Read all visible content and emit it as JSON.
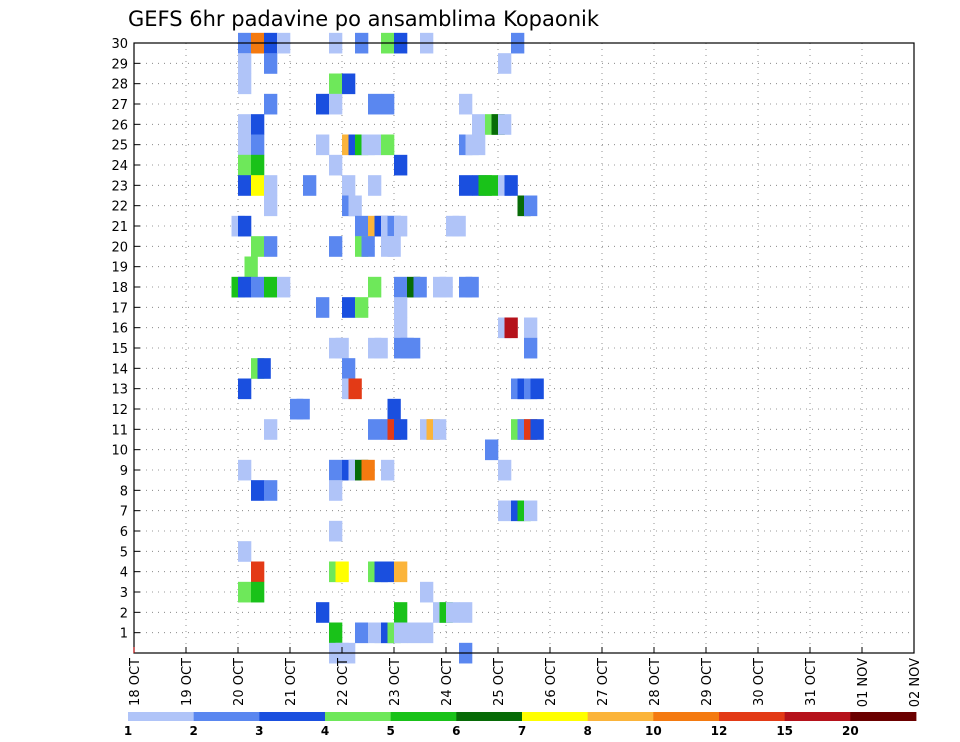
{
  "chart_data": {
    "type": "heatmap",
    "title": "GEFS 6hr padavine po ansamblima Kopaonik",
    "xlabel": "",
    "ylabel": "",
    "x_tick_labels": [
      "18 OCT",
      "19 OCT",
      "20 OCT",
      "21 OCT",
      "22 OCT",
      "23 OCT",
      "24 OCT",
      "25 OCT",
      "26 OCT",
      "27 OCT",
      "28 OCT",
      "29 OCT",
      "30 OCT",
      "31 OCT",
      "01 NOV",
      "02 NOV"
    ],
    "y_tick_labels": [
      "1",
      "2",
      "3",
      "4",
      "5",
      "6",
      "7",
      "8",
      "9",
      "10",
      "11",
      "12",
      "13",
      "14",
      "15",
      "16",
      "17",
      "18",
      "19",
      "20",
      "21",
      "22",
      "23",
      "24",
      "25",
      "26",
      "27",
      "28",
      "29",
      "30"
    ],
    "ylim": [
      0,
      30
    ],
    "time_step_hours": 6,
    "time_steps": 61,
    "grid": true,
    "legend_placement": "bottom",
    "legend_labels": [
      "1",
      "2",
      "3",
      "4",
      "5",
      "6",
      "7",
      "8",
      "10",
      "12",
      "15",
      "20"
    ],
    "colors": [
      "#b0c4f8",
      "#5a87f0",
      "#1a4fdf",
      "#6ee85a",
      "#19c219",
      "#076b07",
      "#ffff00",
      "#fbb43a",
      "#f47a10",
      "#e33a16",
      "#b5121b",
      "#6b0000"
    ],
    "cells": [
      {
        "t": 8,
        "m": 30,
        "c": 1
      },
      {
        "t": 9,
        "m": 30,
        "c": 8
      },
      {
        "t": 10,
        "m": 30,
        "c": 2
      },
      {
        "t": 11,
        "m": 30,
        "c": 0
      },
      {
        "t": 15,
        "m": 30,
        "c": 0
      },
      {
        "t": 17,
        "m": 30,
        "c": 1
      },
      {
        "t": 19,
        "m": 30,
        "c": 3
      },
      {
        "t": 20,
        "m": 30,
        "c": 2
      },
      {
        "t": 22,
        "m": 30,
        "c": 0
      },
      {
        "t": 29,
        "m": 30,
        "c": 1
      },
      {
        "t": 8,
        "m": 29,
        "c": 0
      },
      {
        "t": 10,
        "m": 29,
        "c": 1
      },
      {
        "t": 28,
        "m": 29,
        "c": 0
      },
      {
        "t": 8,
        "m": 28,
        "c": 0
      },
      {
        "t": 15,
        "m": 28,
        "c": 3
      },
      {
        "t": 16,
        "m": 28,
        "c": 2
      },
      {
        "t": 10,
        "m": 27,
        "c": 1
      },
      {
        "t": 14,
        "m": 27,
        "c": 2
      },
      {
        "t": 15,
        "m": 27,
        "c": 0
      },
      {
        "t": 18,
        "m": 27,
        "c": 1
      },
      {
        "t": 19,
        "m": 27,
        "c": 1
      },
      {
        "t": 25,
        "m": 27,
        "c": 0
      },
      {
        "t": 8,
        "m": 26,
        "c": 0
      },
      {
        "t": 9,
        "m": 26,
        "c": 2
      },
      {
        "t": 26,
        "m": 26,
        "c": 0
      },
      {
        "t": 27,
        "m": 26,
        "c": 3
      },
      {
        "t": 27.5,
        "m": 26,
        "c": 5
      },
      {
        "t": 28,
        "m": 26,
        "c": 0
      },
      {
        "t": 8,
        "m": 25,
        "c": 0
      },
      {
        "t": 9,
        "m": 25,
        "c": 1
      },
      {
        "t": 14,
        "m": 25,
        "c": 0
      },
      {
        "t": 16,
        "m": 25,
        "c": 7
      },
      {
        "t": 16.5,
        "m": 25,
        "c": 2
      },
      {
        "t": 17,
        "m": 25,
        "c": 4
      },
      {
        "t": 17.5,
        "m": 25,
        "c": 0
      },
      {
        "t": 18,
        "m": 25,
        "c": 0
      },
      {
        "t": 19,
        "m": 25,
        "c": 3
      },
      {
        "t": 25,
        "m": 25,
        "c": 1
      },
      {
        "t": 25.5,
        "m": 25,
        "c": 0
      },
      {
        "t": 26,
        "m": 25,
        "c": 0
      },
      {
        "t": 8,
        "m": 24,
        "c": 3
      },
      {
        "t": 9,
        "m": 24,
        "c": 4
      },
      {
        "t": 15,
        "m": 24,
        "c": 0
      },
      {
        "t": 20,
        "m": 24,
        "c": 2
      },
      {
        "t": 8,
        "m": 23,
        "c": 2
      },
      {
        "t": 9,
        "m": 23,
        "c": 6
      },
      {
        "t": 10,
        "m": 23,
        "c": 0
      },
      {
        "t": 13,
        "m": 23,
        "c": 1
      },
      {
        "t": 16,
        "m": 23,
        "c": 0
      },
      {
        "t": 18,
        "m": 23,
        "c": 0
      },
      {
        "t": 25,
        "m": 23,
        "c": 2
      },
      {
        "t": 26,
        "m": 23,
        "c": 2
      },
      {
        "t": 26.5,
        "m": 23,
        "c": 4
      },
      {
        "t": 27,
        "m": 23,
        "c": 4
      },
      {
        "t": 28,
        "m": 23,
        "c": 0
      },
      {
        "t": 28.5,
        "m": 23,
        "c": 2
      },
      {
        "t": 10,
        "m": 22,
        "c": 0
      },
      {
        "t": 16,
        "m": 22,
        "c": 1
      },
      {
        "t": 16.5,
        "m": 22,
        "c": 0
      },
      {
        "t": 29.5,
        "m": 22,
        "c": 5
      },
      {
        "t": 30,
        "m": 22,
        "c": 1
      },
      {
        "t": 7.5,
        "m": 21,
        "c": 0
      },
      {
        "t": 8,
        "m": 21,
        "c": 2
      },
      {
        "t": 17,
        "m": 21,
        "c": 1
      },
      {
        "t": 18,
        "m": 21,
        "c": 7
      },
      {
        "t": 18.5,
        "m": 21,
        "c": 2
      },
      {
        "t": 19,
        "m": 21,
        "c": 0
      },
      {
        "t": 19.5,
        "m": 21,
        "c": 1
      },
      {
        "t": 20,
        "m": 21,
        "c": 0
      },
      {
        "t": 24,
        "m": 21,
        "c": 0
      },
      {
        "t": 24.5,
        "m": 21,
        "c": 0
      },
      {
        "t": 9,
        "m": 20,
        "c": 3
      },
      {
        "t": 10,
        "m": 20,
        "c": 1
      },
      {
        "t": 15,
        "m": 20,
        "c": 1
      },
      {
        "t": 17,
        "m": 20,
        "c": 3
      },
      {
        "t": 17.5,
        "m": 20,
        "c": 1
      },
      {
        "t": 19,
        "m": 20,
        "c": 0
      },
      {
        "t": 19.5,
        "m": 20,
        "c": 0
      },
      {
        "t": 8.5,
        "m": 19,
        "c": 3
      },
      {
        "t": 7.5,
        "m": 18,
        "c": 4
      },
      {
        "t": 8,
        "m": 18,
        "c": 2
      },
      {
        "t": 9,
        "m": 18,
        "c": 1
      },
      {
        "t": 10,
        "m": 18,
        "c": 4
      },
      {
        "t": 11,
        "m": 18,
        "c": 0
      },
      {
        "t": 18,
        "m": 18,
        "c": 3
      },
      {
        "t": 20,
        "m": 18,
        "c": 1
      },
      {
        "t": 21,
        "m": 18,
        "c": 5
      },
      {
        "t": 21.5,
        "m": 18,
        "c": 1
      },
      {
        "t": 23,
        "m": 18,
        "c": 0
      },
      {
        "t": 23.5,
        "m": 18,
        "c": 0
      },
      {
        "t": 25,
        "m": 18,
        "c": 1
      },
      {
        "t": 25.5,
        "m": 18,
        "c": 1
      },
      {
        "t": 14,
        "m": 17,
        "c": 1
      },
      {
        "t": 16,
        "m": 17,
        "c": 2
      },
      {
        "t": 17,
        "m": 17,
        "c": 3
      },
      {
        "t": 20,
        "m": 17,
        "c": 0
      },
      {
        "t": 20,
        "m": 16,
        "c": 0
      },
      {
        "t": 28,
        "m": 16,
        "c": 0
      },
      {
        "t": 28.5,
        "m": 16,
        "c": 10
      },
      {
        "t": 30,
        "m": 16,
        "c": 0
      },
      {
        "t": 15,
        "m": 15,
        "c": 0
      },
      {
        "t": 15.5,
        "m": 15,
        "c": 0
      },
      {
        "t": 18,
        "m": 15,
        "c": 0
      },
      {
        "t": 18.5,
        "m": 15,
        "c": 0
      },
      {
        "t": 20,
        "m": 15,
        "c": 1
      },
      {
        "t": 20.5,
        "m": 15,
        "c": 1
      },
      {
        "t": 21,
        "m": 15,
        "c": 1
      },
      {
        "t": 30,
        "m": 15,
        "c": 1
      },
      {
        "t": 9,
        "m": 14,
        "c": 3
      },
      {
        "t": 9.5,
        "m": 14,
        "c": 2
      },
      {
        "t": 16,
        "m": 14,
        "c": 1
      },
      {
        "t": 8,
        "m": 13,
        "c": 2
      },
      {
        "t": 16,
        "m": 13,
        "c": 0
      },
      {
        "t": 16.5,
        "m": 13,
        "c": 9
      },
      {
        "t": 29,
        "m": 13,
        "c": 1
      },
      {
        "t": 29.5,
        "m": 13,
        "c": 2
      },
      {
        "t": 30,
        "m": 13,
        "c": 1
      },
      {
        "t": 30.5,
        "m": 13,
        "c": 2
      },
      {
        "t": 12,
        "m": 12,
        "c": 1
      },
      {
        "t": 12.5,
        "m": 12,
        "c": 1
      },
      {
        "t": 19.5,
        "m": 12,
        "c": 2
      },
      {
        "t": 10,
        "m": 11,
        "c": 0
      },
      {
        "t": 18,
        "m": 11,
        "c": 1
      },
      {
        "t": 19,
        "m": 11,
        "c": 1
      },
      {
        "t": 19.5,
        "m": 11,
        "c": 9
      },
      {
        "t": 20,
        "m": 11,
        "c": 2
      },
      {
        "t": 22,
        "m": 11,
        "c": 0
      },
      {
        "t": 22.5,
        "m": 11,
        "c": 7
      },
      {
        "t": 23,
        "m": 11,
        "c": 0
      },
      {
        "t": 29,
        "m": 11,
        "c": 3
      },
      {
        "t": 29.5,
        "m": 11,
        "c": 1
      },
      {
        "t": 30,
        "m": 11,
        "c": 9
      },
      {
        "t": 30.5,
        "m": 11,
        "c": 2
      },
      {
        "t": 27,
        "m": 10,
        "c": 1
      },
      {
        "t": 8,
        "m": 9,
        "c": 0
      },
      {
        "t": 15,
        "m": 9,
        "c": 1
      },
      {
        "t": 16,
        "m": 9,
        "c": 2
      },
      {
        "t": 16.5,
        "m": 9,
        "c": 0
      },
      {
        "t": 17,
        "m": 9,
        "c": 5
      },
      {
        "t": 17.5,
        "m": 9,
        "c": 8
      },
      {
        "t": 19,
        "m": 9,
        "c": 0
      },
      {
        "t": 28,
        "m": 9,
        "c": 0
      },
      {
        "t": 9,
        "m": 8,
        "c": 2
      },
      {
        "t": 10,
        "m": 8,
        "c": 1
      },
      {
        "t": 15,
        "m": 8,
        "c": 0
      },
      {
        "t": 28,
        "m": 7,
        "c": 0
      },
      {
        "t": 29,
        "m": 7,
        "c": 2
      },
      {
        "t": 29.5,
        "m": 7,
        "c": 4
      },
      {
        "t": 30,
        "m": 7,
        "c": 0
      },
      {
        "t": 15,
        "m": 6,
        "c": 0
      },
      {
        "t": 8,
        "m": 5,
        "c": 0
      },
      {
        "t": 9,
        "m": 4,
        "c": 9
      },
      {
        "t": 15,
        "m": 4,
        "c": 3
      },
      {
        "t": 15.5,
        "m": 4,
        "c": 6
      },
      {
        "t": 18,
        "m": 4,
        "c": 3
      },
      {
        "t": 18.5,
        "m": 4,
        "c": 2
      },
      {
        "t": 19,
        "m": 4,
        "c": 2
      },
      {
        "t": 20,
        "m": 4,
        "c": 7
      },
      {
        "t": 8,
        "m": 3,
        "c": 3
      },
      {
        "t": 9,
        "m": 3,
        "c": 4
      },
      {
        "t": 22,
        "m": 3,
        "c": 0
      },
      {
        "t": 14,
        "m": 2,
        "c": 2
      },
      {
        "t": 20,
        "m": 2,
        "c": 4
      },
      {
        "t": 23,
        "m": 2,
        "c": 0
      },
      {
        "t": 23.5,
        "m": 2,
        "c": 4
      },
      {
        "t": 24,
        "m": 2,
        "c": 0
      },
      {
        "t": 25,
        "m": 2,
        "c": 0
      },
      {
        "t": 15,
        "m": 1,
        "c": 4
      },
      {
        "t": 17,
        "m": 1,
        "c": 1
      },
      {
        "t": 18,
        "m": 1,
        "c": 0
      },
      {
        "t": 18.5,
        "m": 1,
        "c": 0
      },
      {
        "t": 19,
        "m": 1,
        "c": 2
      },
      {
        "t": 19.5,
        "m": 1,
        "c": 3
      },
      {
        "t": 20,
        "m": 1,
        "c": 0
      },
      {
        "t": 21,
        "m": 1,
        "c": 0
      },
      {
        "t": 22,
        "m": 1,
        "c": 0
      },
      {
        "t": 15,
        "m": 0,
        "c": 0
      },
      {
        "t": 15.5,
        "m": 0,
        "c": 0
      },
      {
        "t": 16,
        "m": 0,
        "c": 0
      },
      {
        "t": 25,
        "m": 0,
        "c": 1
      }
    ]
  }
}
